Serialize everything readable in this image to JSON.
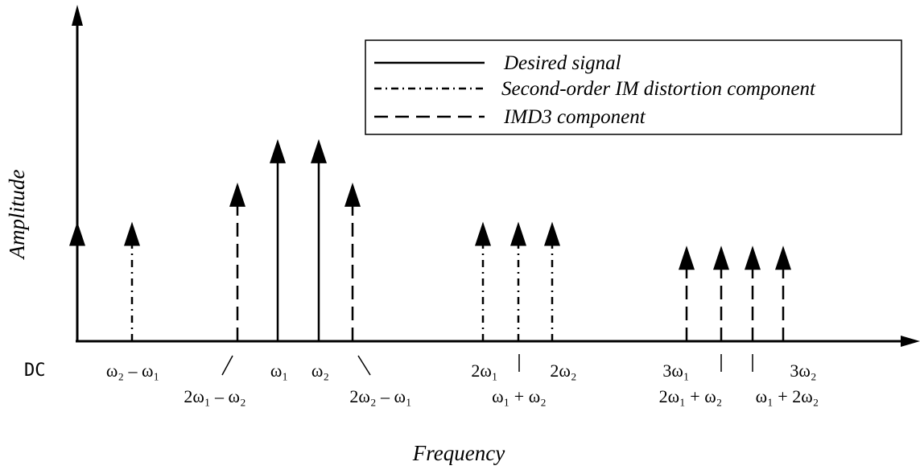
{
  "axes": {
    "y_label": "Amplitude",
    "x_label": "Frequency",
    "origin_label": "DC"
  },
  "legend": {
    "desired": "Desired signal",
    "second_order": "Second-order IM distortion component",
    "imd3": "IMD3 component"
  },
  "components": [
    {
      "id": "dc",
      "label": "DC",
      "style": "solid",
      "rel_amplitude": 0.55
    },
    {
      "id": "w2-w1",
      "label": "ω₂ – ω₁",
      "style": "dashdot",
      "rel_amplitude": 0.55
    },
    {
      "id": "2w1-w2",
      "label": "2ω₁ – ω₂",
      "style": "dashed",
      "rel_amplitude": 0.73
    },
    {
      "id": "w1",
      "label": "ω₁",
      "style": "solid",
      "rel_amplitude": 0.93
    },
    {
      "id": "w2",
      "label": "ω₂",
      "style": "solid",
      "rel_amplitude": 0.93
    },
    {
      "id": "2w2-w1",
      "label": "2ω₂ – ω₁",
      "style": "dashed",
      "rel_amplitude": 0.73
    },
    {
      "id": "2w1",
      "label": "2ω₁",
      "style": "dashdot",
      "rel_amplitude": 0.55
    },
    {
      "id": "w1+w2",
      "label": "ω₁ + ω₂",
      "style": "dashdot",
      "rel_amplitude": 0.55
    },
    {
      "id": "2w2",
      "label": "2ω₂",
      "style": "dashdot",
      "rel_amplitude": 0.55
    },
    {
      "id": "3w1",
      "label": "3ω₁",
      "style": "dashed",
      "rel_amplitude": 0.44
    },
    {
      "id": "2w1+w2",
      "label": "2ω₁ + ω₂",
      "style": "dashed",
      "rel_amplitude": 0.44
    },
    {
      "id": "w1+2w2",
      "label": "ω₁ + 2ω₂",
      "style": "dashed",
      "rel_amplitude": 0.44
    },
    {
      "id": "3w2",
      "label": "3ω₂",
      "style": "dashed",
      "rel_amplitude": 0.44
    }
  ]
}
